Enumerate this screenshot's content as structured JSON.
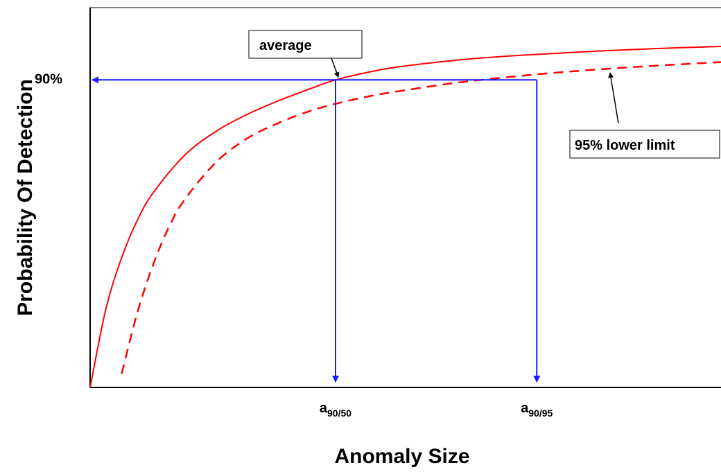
{
  "chart_data": {
    "type": "line",
    "title": "",
    "xlabel": "Anomaly Size",
    "ylabel": "Probability Of Detection",
    "ytick_labels": [
      "90%"
    ],
    "xtick_labels": [
      {
        "main": "a",
        "sub": "90/50"
      },
      {
        "main": "a",
        "sub": "90/95"
      }
    ],
    "xlim": [
      0,
      1
    ],
    "ylim": [
      0,
      1
    ],
    "grid": false,
    "threshold": 0.9,
    "series": [
      {
        "name": "average",
        "style": "solid",
        "color": "#ff0000",
        "x": [
          0.0,
          0.025,
          0.05,
          0.075,
          0.1,
          0.15,
          0.2,
          0.25,
          0.3,
          0.35,
          0.389,
          0.45,
          0.5,
          0.6,
          0.7,
          0.8,
          0.9,
          1.0
        ],
        "y": [
          0.0,
          0.23,
          0.38,
          0.49,
          0.57,
          0.68,
          0.75,
          0.8,
          0.84,
          0.875,
          0.9,
          0.926,
          0.941,
          0.961,
          0.974,
          0.984,
          0.992,
          0.998
        ]
      },
      {
        "name": "95% lower limit",
        "style": "dashed",
        "color": "#ff0000",
        "x": [
          0.05,
          0.075,
          0.1,
          0.125,
          0.15,
          0.2,
          0.25,
          0.3,
          0.35,
          0.4,
          0.45,
          0.5,
          0.55,
          0.6,
          0.7,
          0.8,
          0.9,
          1.0
        ],
        "y": [
          0.04,
          0.22,
          0.36,
          0.47,
          0.55,
          0.66,
          0.73,
          0.775,
          0.81,
          0.835,
          0.855,
          0.87,
          0.884,
          0.896,
          0.915,
          0.93,
          0.942,
          0.952
        ]
      }
    ],
    "markers": [
      {
        "label_index": 0,
        "x": 0.389
      },
      {
        "label_index": 1,
        "x": 0.708
      }
    ],
    "annotations": [
      {
        "text": "average",
        "target_series": 0
      },
      {
        "text": "95% lower limit",
        "target_series": 1
      }
    ],
    "colors": {
      "curve": "#ff0000",
      "threshold_lines": "#1a1aff",
      "axes": "#000000"
    }
  }
}
